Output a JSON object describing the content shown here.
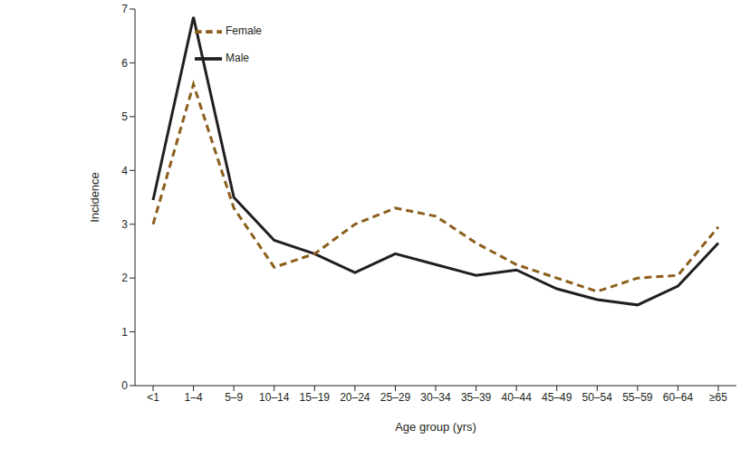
{
  "chart_data": {
    "type": "line",
    "x_label": "Age group (yrs)",
    "y_label": "Incidence",
    "categories": [
      "<1",
      "1–4",
      "5–9",
      "10–14",
      "15–19",
      "20–24",
      "25–29",
      "30–34",
      "35–39",
      "40–44",
      "45–49",
      "50–54",
      "55–59",
      "60–64",
      "≥65"
    ],
    "series": [
      {
        "name": "Male",
        "color": "#231f20",
        "line_style": "solid",
        "values": [
          3.45,
          6.85,
          3.5,
          2.7,
          2.45,
          2.1,
          2.45,
          2.25,
          2.05,
          2.15,
          1.8,
          1.6,
          1.5,
          1.85,
          2.65
        ]
      },
      {
        "name": "Female",
        "color": "#8b5e1a",
        "line_style": "dashed",
        "values": [
          3.0,
          5.6,
          3.3,
          2.2,
          2.45,
          3.0,
          3.3,
          3.15,
          2.65,
          2.25,
          2.0,
          1.75,
          2.0,
          2.05,
          2.95
        ]
      }
    ],
    "ylim": [
      0,
      7
    ],
    "yticks": [
      0,
      1,
      2,
      3,
      4,
      5,
      6,
      7
    ],
    "grid": false,
    "legend": "upper left"
  }
}
